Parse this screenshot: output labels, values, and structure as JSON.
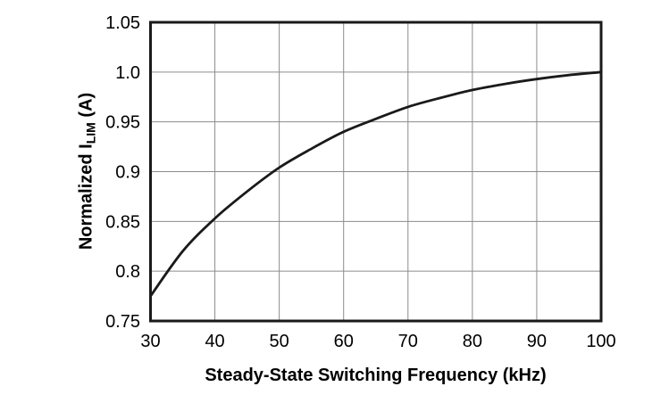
{
  "chart_data": {
    "type": "line",
    "title": "",
    "xlabel": "Steady-State Switching Frequency (kHz)",
    "ylabel": "Normalized ILIM (A)",
    "ylabel_parts": {
      "prefix": "Normalized I",
      "subscript": "LIM",
      "suffix": " (A)"
    },
    "xlim": [
      30,
      100
    ],
    "ylim": [
      0.75,
      1.05
    ],
    "x_ticks": [
      {
        "value": 30,
        "label": "30"
      },
      {
        "value": 40,
        "label": "40"
      },
      {
        "value": 50,
        "label": "50"
      },
      {
        "value": 60,
        "label": "60"
      },
      {
        "value": 70,
        "label": "70"
      },
      {
        "value": 80,
        "label": "80"
      },
      {
        "value": 90,
        "label": "90"
      },
      {
        "value": 100,
        "label": "100"
      }
    ],
    "y_ticks": [
      {
        "value": 0.75,
        "label": "0.75"
      },
      {
        "value": 0.8,
        "label": "0.8"
      },
      {
        "value": 0.85,
        "label": "0.85"
      },
      {
        "value": 0.9,
        "label": "0.9"
      },
      {
        "value": 0.95,
        "label": "0.95"
      },
      {
        "value": 1.0,
        "label": "1.0"
      },
      {
        "value": 1.05,
        "label": "1.05"
      }
    ],
    "grid": true,
    "legend_position": "none",
    "series": [
      {
        "name": "Normalized ILIM",
        "x": [
          30,
          35,
          40,
          45,
          50,
          55,
          60,
          65,
          70,
          75,
          80,
          85,
          90,
          95,
          100
        ],
        "y": [
          0.775,
          0.82,
          0.853,
          0.88,
          0.904,
          0.923,
          0.94,
          0.953,
          0.965,
          0.974,
          0.982,
          0.988,
          0.993,
          0.997,
          1.0
        ]
      }
    ],
    "colors": {
      "curve": "#1a1a1a",
      "grid": "#8c8c8c",
      "frame": "#1a1a1a",
      "text": "#000000",
      "background": "#ffffff"
    }
  }
}
